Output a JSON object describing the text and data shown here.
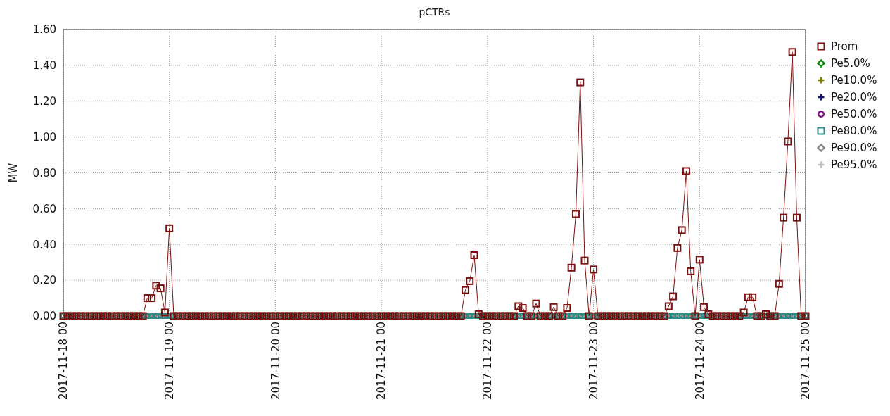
{
  "chart_data": {
    "type": "line",
    "title": "pCTRs",
    "ylabel": "MW",
    "x": [
      "2017-11-18T00:00",
      "2017-11-18T01:00",
      "2017-11-18T02:00",
      "2017-11-18T03:00",
      "2017-11-18T04:00",
      "2017-11-18T05:00",
      "2017-11-18T06:00",
      "2017-11-18T07:00",
      "2017-11-18T08:00",
      "2017-11-18T09:00",
      "2017-11-18T10:00",
      "2017-11-18T11:00",
      "2017-11-18T12:00",
      "2017-11-18T13:00",
      "2017-11-18T14:00",
      "2017-11-18T15:00",
      "2017-11-18T16:00",
      "2017-11-18T17:00",
      "2017-11-18T18:00",
      "2017-11-18T19:00",
      "2017-11-18T20:00",
      "2017-11-18T21:00",
      "2017-11-18T22:00",
      "2017-11-18T23:00",
      "2017-11-19T00:00",
      "2017-11-19T01:00",
      "2017-11-19T02:00",
      "2017-11-19T03:00",
      "2017-11-19T04:00",
      "2017-11-19T05:00",
      "2017-11-19T06:00",
      "2017-11-19T07:00",
      "2017-11-19T08:00",
      "2017-11-19T09:00",
      "2017-11-19T10:00",
      "2017-11-19T11:00",
      "2017-11-19T12:00",
      "2017-11-19T13:00",
      "2017-11-19T14:00",
      "2017-11-19T15:00",
      "2017-11-19T16:00",
      "2017-11-19T17:00",
      "2017-11-19T18:00",
      "2017-11-19T19:00",
      "2017-11-19T20:00",
      "2017-11-19T21:00",
      "2017-11-19T22:00",
      "2017-11-19T23:00",
      "2017-11-20T00:00",
      "2017-11-20T01:00",
      "2017-11-20T02:00",
      "2017-11-20T03:00",
      "2017-11-20T04:00",
      "2017-11-20T05:00",
      "2017-11-20T06:00",
      "2017-11-20T07:00",
      "2017-11-20T08:00",
      "2017-11-20T09:00",
      "2017-11-20T10:00",
      "2017-11-20T11:00",
      "2017-11-20T12:00",
      "2017-11-20T13:00",
      "2017-11-20T14:00",
      "2017-11-20T15:00",
      "2017-11-20T16:00",
      "2017-11-20T17:00",
      "2017-11-20T18:00",
      "2017-11-20T19:00",
      "2017-11-20T20:00",
      "2017-11-20T21:00",
      "2017-11-20T22:00",
      "2017-11-20T23:00",
      "2017-11-21T00:00",
      "2017-11-21T01:00",
      "2017-11-21T02:00",
      "2017-11-21T03:00",
      "2017-11-21T04:00",
      "2017-11-21T05:00",
      "2017-11-21T06:00",
      "2017-11-21T07:00",
      "2017-11-21T08:00",
      "2017-11-21T09:00",
      "2017-11-21T10:00",
      "2017-11-21T11:00",
      "2017-11-21T12:00",
      "2017-11-21T13:00",
      "2017-11-21T14:00",
      "2017-11-21T15:00",
      "2017-11-21T16:00",
      "2017-11-21T17:00",
      "2017-11-21T18:00",
      "2017-11-21T19:00",
      "2017-11-21T20:00",
      "2017-11-21T21:00",
      "2017-11-21T22:00",
      "2017-11-21T23:00",
      "2017-11-22T00:00",
      "2017-11-22T01:00",
      "2017-11-22T02:00",
      "2017-11-22T03:00",
      "2017-11-22T04:00",
      "2017-11-22T05:00",
      "2017-11-22T06:00",
      "2017-11-22T07:00",
      "2017-11-22T08:00",
      "2017-11-22T09:00",
      "2017-11-22T10:00",
      "2017-11-22T11:00",
      "2017-11-22T12:00",
      "2017-11-22T13:00",
      "2017-11-22T14:00",
      "2017-11-22T15:00",
      "2017-11-22T16:00",
      "2017-11-22T17:00",
      "2017-11-22T18:00",
      "2017-11-22T19:00",
      "2017-11-22T20:00",
      "2017-11-22T21:00",
      "2017-11-22T22:00",
      "2017-11-22T23:00",
      "2017-11-23T00:00",
      "2017-11-23T01:00",
      "2017-11-23T02:00",
      "2017-11-23T03:00",
      "2017-11-23T04:00",
      "2017-11-23T05:00",
      "2017-11-23T06:00",
      "2017-11-23T07:00",
      "2017-11-23T08:00",
      "2017-11-23T09:00",
      "2017-11-23T10:00",
      "2017-11-23T11:00",
      "2017-11-23T12:00",
      "2017-11-23T13:00",
      "2017-11-23T14:00",
      "2017-11-23T15:00",
      "2017-11-23T16:00",
      "2017-11-23T17:00",
      "2017-11-23T18:00",
      "2017-11-23T19:00",
      "2017-11-23T20:00",
      "2017-11-23T21:00",
      "2017-11-23T22:00",
      "2017-11-23T23:00",
      "2017-11-24T00:00",
      "2017-11-24T01:00",
      "2017-11-24T02:00",
      "2017-11-24T03:00",
      "2017-11-24T04:00",
      "2017-11-24T05:00",
      "2017-11-24T06:00",
      "2017-11-24T07:00",
      "2017-11-24T08:00",
      "2017-11-24T09:00",
      "2017-11-24T10:00",
      "2017-11-24T11:00",
      "2017-11-24T12:00",
      "2017-11-24T13:00",
      "2017-11-24T14:00",
      "2017-11-24T15:00",
      "2017-11-24T16:00",
      "2017-11-24T17:00",
      "2017-11-24T18:00",
      "2017-11-24T19:00",
      "2017-11-24T20:00",
      "2017-11-24T21:00",
      "2017-11-24T22:00",
      "2017-11-24T23:00",
      "2017-11-25T00:00"
    ],
    "series": [
      {
        "name": "Prom",
        "marker": "square",
        "color": "#7b1010",
        "values": [
          0,
          0,
          0,
          0,
          0,
          0,
          0,
          0,
          0,
          0,
          0,
          0,
          0,
          0,
          0,
          0,
          0,
          0,
          0,
          0.1,
          0.1,
          0.17,
          0.155,
          0.02,
          0.49,
          0,
          0,
          0,
          0,
          0,
          0,
          0,
          0,
          0,
          0,
          0,
          0,
          0,
          0,
          0,
          0,
          0,
          0,
          0,
          0,
          0,
          0,
          0,
          0,
          0,
          0,
          0,
          0,
          0,
          0,
          0,
          0,
          0,
          0,
          0,
          0,
          0,
          0,
          0,
          0,
          0,
          0,
          0,
          0,
          0,
          0,
          0,
          0,
          0,
          0,
          0,
          0,
          0,
          0,
          0,
          0,
          0,
          0,
          0,
          0,
          0,
          0,
          0,
          0,
          0,
          0,
          0.145,
          0.195,
          0.34,
          0.01,
          0,
          0,
          0,
          0,
          0,
          0,
          0,
          0,
          0.055,
          0.045,
          0,
          0,
          0.07,
          0,
          0,
          0,
          0.05,
          0,
          0,
          0.045,
          0.27,
          0.57,
          1.305,
          0.31,
          0,
          0.26,
          0,
          0,
          0,
          0,
          0,
          0,
          0,
          0,
          0,
          0,
          0,
          0,
          0,
          0,
          0,
          0,
          0.055,
          0.11,
          0.38,
          0.48,
          0.81,
          0.25,
          0,
          0.315,
          0.05,
          0.01,
          0,
          0,
          0,
          0,
          0,
          0,
          0,
          0.02,
          0.105,
          0.105,
          0,
          0,
          0.01,
          0,
          0,
          0.18,
          0.55,
          0.975,
          1.475,
          0.55,
          0,
          0
        ]
      },
      {
        "name": "Pe5.0%",
        "type": "scatter",
        "marker": "diamond",
        "color": "#1a8a1a",
        "values": [
          null,
          null,
          null,
          null,
          null,
          null,
          null,
          null,
          null,
          null,
          null,
          null,
          null,
          null,
          null,
          null,
          null,
          null,
          null,
          null,
          null,
          null,
          null,
          null,
          null,
          null,
          null,
          null,
          null,
          null,
          null,
          null,
          null,
          null,
          null,
          null,
          null,
          null,
          null,
          null,
          null,
          null,
          null,
          null,
          null,
          null,
          null,
          null,
          null,
          null,
          null,
          null,
          null,
          null,
          null,
          null,
          null,
          null,
          null,
          null,
          null,
          null,
          null,
          null,
          null,
          null,
          null,
          null,
          null,
          null,
          null,
          null,
          null,
          null,
          null,
          null,
          null,
          null,
          null,
          null,
          null,
          null,
          null,
          null,
          null,
          null,
          null,
          null,
          null,
          null,
          null,
          null,
          null,
          null,
          null,
          null,
          null,
          null,
          null,
          null,
          null,
          null,
          null,
          null,
          null,
          null,
          null,
          null,
          null,
          null,
          null,
          null,
          null,
          null,
          null,
          null,
          null,
          null,
          null,
          null,
          null,
          null,
          null,
          null,
          null,
          null,
          null,
          null,
          null,
          null,
          null,
          null,
          null,
          null,
          null,
          null,
          null,
          null,
          null,
          null,
          null,
          null,
          null,
          null,
          null,
          null,
          null,
          null,
          null,
          null,
          null,
          null,
          null,
          null,
          null,
          null,
          null,
          null,
          null,
          null,
          null,
          null,
          null,
          null,
          null,
          null,
          null,
          null,
          null
        ]
      },
      {
        "name": "Pe10.0%",
        "type": "scatter",
        "marker": "cross",
        "color": "#808000",
        "values": [
          null,
          null,
          null,
          null,
          null,
          null,
          null,
          null,
          null,
          null,
          null,
          null,
          null,
          null,
          null,
          null,
          null,
          null,
          null,
          null,
          null,
          null,
          null,
          null,
          null,
          null,
          null,
          null,
          null,
          null,
          null,
          null,
          null,
          null,
          null,
          null,
          null,
          null,
          null,
          null,
          null,
          null,
          null,
          null,
          null,
          null,
          null,
          null,
          null,
          null,
          null,
          null,
          null,
          null,
          null,
          null,
          null,
          null,
          null,
          null,
          null,
          null,
          null,
          null,
          null,
          null,
          null,
          null,
          null,
          null,
          null,
          null,
          null,
          null,
          null,
          null,
          null,
          null,
          null,
          null,
          null,
          null,
          null,
          null,
          null,
          null,
          null,
          null,
          null,
          null,
          null,
          null,
          null,
          null,
          null,
          null,
          null,
          null,
          null,
          null,
          null,
          null,
          null,
          null,
          null,
          null,
          null,
          null,
          null,
          null,
          null,
          null,
          null,
          null,
          null,
          null,
          null,
          null,
          null,
          null,
          null,
          null,
          null,
          null,
          null,
          null,
          null,
          null,
          null,
          null,
          null,
          null,
          null,
          null,
          null,
          null,
          null,
          null,
          null,
          null,
          null,
          null,
          null,
          null,
          null,
          null,
          null,
          null,
          null,
          null,
          null,
          null,
          null,
          null,
          null,
          null,
          null,
          null,
          null,
          null,
          null,
          null,
          null,
          null,
          null,
          null,
          null,
          null,
          null
        ]
      },
      {
        "name": "Pe20.0%",
        "type": "scatter",
        "marker": "cross",
        "color": "#10107b",
        "values": [
          null,
          null,
          null,
          null,
          null,
          null,
          null,
          null,
          null,
          null,
          null,
          null,
          null,
          null,
          null,
          null,
          null,
          null,
          null,
          null,
          null,
          null,
          null,
          null,
          null,
          null,
          null,
          null,
          null,
          null,
          null,
          null,
          null,
          null,
          null,
          null,
          null,
          null,
          null,
          null,
          null,
          null,
          null,
          null,
          null,
          null,
          null,
          null,
          null,
          null,
          null,
          null,
          null,
          null,
          null,
          null,
          null,
          null,
          null,
          null,
          null,
          null,
          null,
          null,
          null,
          null,
          null,
          null,
          null,
          null,
          null,
          null,
          null,
          null,
          null,
          null,
          null,
          null,
          null,
          null,
          null,
          null,
          null,
          null,
          null,
          null,
          null,
          null,
          null,
          null,
          null,
          null,
          null,
          null,
          null,
          null,
          null,
          null,
          null,
          null,
          null,
          null,
          null,
          null,
          null,
          null,
          null,
          null,
          null,
          null,
          null,
          null,
          null,
          null,
          null,
          null,
          null,
          null,
          null,
          null,
          null,
          null,
          null,
          null,
          null,
          null,
          null,
          null,
          null,
          null,
          null,
          null,
          null,
          null,
          null,
          null,
          null,
          null,
          null,
          null,
          null,
          null,
          null,
          null,
          null,
          null,
          null,
          null,
          null,
          null,
          null,
          null,
          null,
          null,
          null,
          null,
          null,
          null,
          null,
          null,
          null,
          null,
          null,
          null,
          null,
          null,
          null,
          null,
          null
        ]
      },
      {
        "name": "Pe50.0%",
        "type": "scatter",
        "marker": "circle",
        "color": "#7b1080",
        "values": [
          null,
          null,
          null,
          null,
          null,
          null,
          null,
          null,
          null,
          null,
          null,
          null,
          null,
          null,
          null,
          null,
          null,
          null,
          null,
          null,
          null,
          null,
          null,
          null,
          null,
          null,
          null,
          null,
          null,
          null,
          null,
          null,
          null,
          null,
          null,
          null,
          null,
          null,
          null,
          null,
          null,
          null,
          null,
          null,
          null,
          null,
          null,
          null,
          null,
          null,
          null,
          null,
          null,
          null,
          null,
          null,
          null,
          null,
          null,
          null,
          null,
          null,
          null,
          null,
          null,
          null,
          null,
          null,
          null,
          null,
          null,
          null,
          null,
          null,
          null,
          null,
          null,
          null,
          null,
          null,
          null,
          null,
          null,
          null,
          null,
          null,
          null,
          null,
          null,
          null,
          null,
          null,
          null,
          null,
          null,
          null,
          null,
          null,
          null,
          null,
          null,
          null,
          null,
          null,
          null,
          null,
          null,
          null,
          null,
          null,
          null,
          null,
          null,
          null,
          null,
          null,
          null,
          null,
          null,
          null,
          null,
          null,
          null,
          null,
          null,
          null,
          null,
          null,
          null,
          null,
          null,
          null,
          null,
          null,
          null,
          null,
          null,
          null,
          null,
          null,
          null,
          null,
          null,
          null,
          null,
          null,
          null,
          null,
          null,
          null,
          null,
          null,
          null,
          null,
          null,
          null,
          null,
          null,
          null,
          null,
          null,
          null,
          null,
          null,
          null,
          null,
          null,
          null,
          null
        ]
      },
      {
        "name": "Pe80.0%",
        "type": "scatter",
        "marker": "square",
        "color": "#2e8b8b",
        "values": [
          0,
          0,
          0,
          0,
          0,
          0,
          0,
          0,
          0,
          0,
          0,
          0,
          0,
          0,
          0,
          0,
          0,
          0,
          0,
          0,
          0,
          0,
          0,
          0,
          0,
          0,
          0,
          0,
          0,
          0,
          0,
          0,
          0,
          0,
          0,
          0,
          0,
          0,
          0,
          0,
          0,
          0,
          0,
          0,
          0,
          0,
          0,
          0,
          0,
          0,
          0,
          0,
          0,
          0,
          0,
          0,
          0,
          0,
          0,
          0,
          0,
          0,
          0,
          0,
          0,
          0,
          0,
          0,
          0,
          0,
          0,
          0,
          0,
          0,
          0,
          0,
          0,
          0,
          0,
          0,
          0,
          0,
          0,
          0,
          0,
          0,
          0,
          0,
          0,
          0,
          0,
          0,
          0,
          0,
          0,
          0,
          0,
          0,
          0,
          0,
          0,
          0,
          0,
          0,
          0,
          0,
          0,
          0,
          0,
          0,
          0,
          0,
          0,
          0,
          0,
          0,
          0,
          0,
          0,
          0,
          0,
          0,
          0,
          0,
          0,
          0,
          0,
          0,
          0,
          0,
          0,
          0,
          0,
          0,
          0,
          0,
          0,
          0,
          0,
          0,
          0,
          0,
          0,
          0,
          0,
          0,
          0,
          0,
          0,
          0,
          0,
          0,
          0,
          0,
          0,
          0,
          0,
          0,
          0,
          0,
          0,
          0,
          0,
          0,
          0,
          0,
          0,
          0,
          0
        ]
      },
      {
        "name": "Pe90.0%",
        "type": "scatter",
        "marker": "diamond",
        "color": "#8c8c8c",
        "values": [
          null,
          null,
          null,
          null,
          null,
          null,
          null,
          null,
          null,
          null,
          null,
          null,
          null,
          null,
          null,
          null,
          null,
          null,
          null,
          null,
          null,
          null,
          null,
          null,
          null,
          null,
          null,
          null,
          null,
          null,
          null,
          null,
          null,
          null,
          null,
          null,
          null,
          null,
          null,
          null,
          null,
          null,
          null,
          null,
          null,
          null,
          null,
          null,
          null,
          null,
          null,
          null,
          null,
          null,
          null,
          null,
          null,
          null,
          null,
          null,
          null,
          null,
          null,
          null,
          null,
          null,
          null,
          null,
          null,
          null,
          null,
          null,
          null,
          null,
          null,
          null,
          null,
          null,
          null,
          null,
          null,
          null,
          null,
          null,
          null,
          null,
          null,
          null,
          null,
          null,
          null,
          null,
          null,
          null,
          null,
          null,
          null,
          null,
          null,
          null,
          null,
          null,
          null,
          null,
          null,
          null,
          null,
          null,
          null,
          null,
          null,
          null,
          null,
          null,
          null,
          null,
          null,
          null,
          null,
          null,
          null,
          null,
          null,
          null,
          null,
          null,
          null,
          null,
          null,
          null,
          null,
          null,
          null,
          null,
          null,
          null,
          null,
          null,
          null,
          null,
          null,
          null,
          null,
          null,
          null,
          null,
          null,
          null,
          null,
          null,
          null,
          null,
          null,
          null,
          null,
          null,
          null,
          null,
          null,
          null,
          null,
          null,
          null,
          null,
          null,
          null,
          null,
          null,
          null
        ]
      },
      {
        "name": "Pe95.0%",
        "type": "scatter",
        "marker": "cross",
        "color": "#c0c0c0",
        "values": [
          null,
          null,
          null,
          null,
          null,
          null,
          null,
          null,
          null,
          null,
          null,
          null,
          null,
          null,
          null,
          null,
          null,
          null,
          null,
          null,
          null,
          null,
          null,
          null,
          null,
          null,
          null,
          null,
          null,
          null,
          null,
          null,
          null,
          null,
          null,
          null,
          null,
          null,
          null,
          null,
          null,
          null,
          null,
          null,
          null,
          null,
          null,
          null,
          null,
          null,
          null,
          null,
          null,
          null,
          null,
          null,
          null,
          null,
          null,
          null,
          null,
          null,
          null,
          null,
          null,
          null,
          null,
          null,
          null,
          null,
          null,
          null,
          null,
          null,
          null,
          null,
          null,
          null,
          null,
          null,
          null,
          null,
          null,
          null,
          null,
          null,
          null,
          null,
          null,
          null,
          null,
          null,
          null,
          null,
          null,
          null,
          null,
          null,
          null,
          null,
          null,
          null,
          null,
          null,
          null,
          null,
          null,
          null,
          null,
          null,
          null,
          null,
          null,
          null,
          null,
          null,
          null,
          null,
          null,
          null,
          null,
          null,
          null,
          null,
          null,
          null,
          null,
          null,
          null,
          null,
          null,
          null,
          null,
          null,
          null,
          null,
          null,
          null,
          null,
          null,
          null,
          null,
          null,
          null,
          null,
          null,
          null,
          null,
          null,
          null,
          null,
          null,
          null,
          null,
          null,
          null,
          null,
          null,
          null,
          null,
          null,
          null,
          null,
          null,
          null,
          null,
          null,
          null,
          null
        ]
      }
    ],
    "xlim": [
      "2017-11-18T00:00",
      "2017-11-25T00:00"
    ],
    "xticks": [
      {
        "value": "2017-11-18T00:00",
        "label": "2017-11-18 00"
      },
      {
        "value": "2017-11-19T00:00",
        "label": "2017-11-19 00"
      },
      {
        "value": "2017-11-20T00:00",
        "label": "2017-11-20 00"
      },
      {
        "value": "2017-11-21T00:00",
        "label": "2017-11-21 00"
      },
      {
        "value": "2017-11-22T00:00",
        "label": "2017-11-22 00"
      },
      {
        "value": "2017-11-23T00:00",
        "label": "2017-11-23 00"
      },
      {
        "value": "2017-11-24T00:00",
        "label": "2017-11-24 00"
      },
      {
        "value": "2017-11-25T00:00",
        "label": "2017-11-25 00"
      }
    ],
    "ylim": [
      0,
      1.6
    ],
    "yticks": [
      {
        "value": 0,
        "label": "0.00"
      },
      {
        "value": 0.2,
        "label": "0.20"
      },
      {
        "value": 0.4,
        "label": "0.40"
      },
      {
        "value": 0.6,
        "label": "0.60"
      },
      {
        "value": 0.8,
        "label": "0.80"
      },
      {
        "value": 1,
        "label": "1.00"
      },
      {
        "value": 1.2,
        "label": "1.20"
      },
      {
        "value": 1.4,
        "label": "1.40"
      },
      {
        "value": 1.6,
        "label": "1.60"
      }
    ],
    "grid": true,
    "legend": "right"
  }
}
